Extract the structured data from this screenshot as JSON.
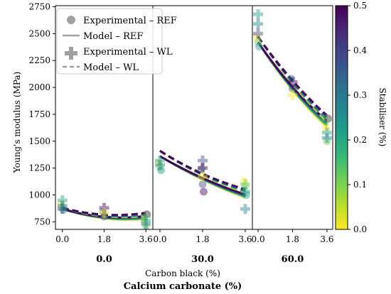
{
  "chart_data": {
    "type": "scatter",
    "ylabel": "Young's modulus (MPa)",
    "xlabel": "Carbon black (%)",
    "group_label": "Calcium carbonate (%)",
    "ylim": [
      680,
      2760
    ],
    "yticks": [
      750,
      1000,
      1250,
      1500,
      1750,
      2000,
      2250,
      2500,
      2750
    ],
    "xlim": [
      -0.3,
      3.9
    ],
    "xticks": [
      "0.0",
      "1.8",
      "3.6"
    ],
    "x_values": [
      0.0,
      1.8,
      3.6
    ],
    "panels": [
      {
        "label": "0.0",
        "experimental_ref": [
          [
            0.0,
            920
          ],
          [
            0.0,
            880
          ],
          [
            0.0,
            860
          ],
          [
            1.8,
            840
          ],
          [
            1.8,
            800
          ],
          [
            3.6,
            820
          ],
          [
            3.6,
            760
          ],
          [
            3.6,
            710
          ]
        ],
        "experimental_wl": [
          [
            0.0,
            950
          ],
          [
            0.0,
            900
          ],
          [
            0.0,
            870
          ],
          [
            1.8,
            880
          ],
          [
            1.8,
            830
          ],
          [
            3.6,
            800
          ],
          [
            3.6,
            760
          ],
          [
            3.6,
            730
          ]
        ],
        "model_ref": [
          [
            0.0,
            870
          ],
          [
            1.8,
            790
          ],
          [
            3.6,
            790
          ]
        ],
        "model_wl": [
          [
            0.0,
            880
          ],
          [
            1.8,
            810
          ],
          [
            3.6,
            820
          ]
        ]
      },
      {
        "label": "30.0",
        "experimental_ref": [
          [
            0.0,
            1300
          ],
          [
            0.0,
            1260
          ],
          [
            0.0,
            1230
          ],
          [
            1.8,
            1240
          ],
          [
            1.8,
            1100
          ],
          [
            1.8,
            1030
          ],
          [
            3.6,
            1130
          ],
          [
            3.6,
            1080
          ],
          [
            3.6,
            1000
          ]
        ],
        "experimental_wl": [
          [
            0.0,
            1320
          ],
          [
            0.0,
            1280
          ],
          [
            1.8,
            1320
          ],
          [
            1.8,
            1250
          ],
          [
            1.8,
            1170
          ],
          [
            3.6,
            1100
          ],
          [
            3.6,
            1030
          ],
          [
            3.6,
            870
          ]
        ],
        "model_ref": [
          [
            0.0,
            1360
          ],
          [
            1.8,
            1150
          ],
          [
            3.6,
            990
          ]
        ],
        "model_wl": [
          [
            0.0,
            1410
          ],
          [
            1.8,
            1190
          ],
          [
            3.6,
            1040
          ]
        ]
      },
      {
        "label": "60.0",
        "experimental_ref": [
          [
            0.0,
            2470
          ],
          [
            0.0,
            2420
          ],
          [
            0.0,
            2380
          ],
          [
            1.8,
            2080
          ],
          [
            1.8,
            1990
          ],
          [
            3.6,
            1710
          ],
          [
            3.6,
            1620
          ],
          [
            3.6,
            1500
          ]
        ],
        "experimental_wl": [
          [
            0.0,
            2680
          ],
          [
            0.0,
            2590
          ],
          [
            0.0,
            2500
          ],
          [
            1.8,
            2050
          ],
          [
            1.8,
            1930
          ],
          [
            3.6,
            1700
          ],
          [
            3.6,
            1580
          ],
          [
            3.6,
            1530
          ]
        ],
        "model_ref": [
          [
            0.0,
            2420
          ],
          [
            1.8,
            1990
          ],
          [
            3.6,
            1660
          ]
        ],
        "model_wl": [
          [
            0.0,
            2470
          ],
          [
            1.8,
            2050
          ],
          [
            3.6,
            1710
          ]
        ]
      }
    ],
    "legend": {
      "position": "top-left",
      "entries": [
        "Experimental – REF",
        "Model – REF",
        "Experimental – WL",
        "Model – WL"
      ]
    },
    "colorbar": {
      "label": "Stabiliser (%)",
      "range": [
        0.0,
        0.5
      ],
      "ticks": [
        "0.0",
        "0.1",
        "0.2",
        "0.3",
        "0.4",
        "0.5"
      ],
      "colormap": "viridis"
    },
    "grid": false
  },
  "colors": {
    "viridis": [
      "#fde725",
      "#b5de2b",
      "#6ece58",
      "#35b779",
      "#1f9e89",
      "#26828e",
      "#31688e",
      "#3e4989",
      "#482878",
      "#440154"
    ],
    "legend_marker": "#a0a0a0"
  }
}
